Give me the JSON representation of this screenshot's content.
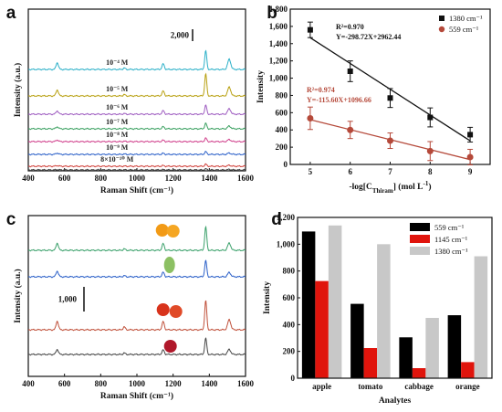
{
  "chart_data": [
    {
      "panel": "a",
      "type": "line",
      "xlabel": "Raman Shift (cm⁻¹)",
      "ylabel": "Intensity (a.u.)",
      "xlim": [
        400,
        1600
      ],
      "xticks": [
        400,
        600,
        800,
        1000,
        1200,
        1400,
        1600
      ],
      "scale_bar_label": "2,000",
      "peaks": [
        560,
        930,
        1145,
        1380,
        1510
      ],
      "series": [
        {
          "name": "10⁻⁴ M",
          "color": "#2bb0c8",
          "peak_height": [
            1.0,
            0.2,
            0.8,
            2.7,
            1.5
          ]
        },
        {
          "name": "10⁻⁵ M",
          "color": "#b8a010",
          "peak_height": [
            0.9,
            0.2,
            0.7,
            3.2,
            1.3
          ]
        },
        {
          "name": "10⁻⁶ M",
          "color": "#9e5cc0",
          "peak_height": [
            0.5,
            0.1,
            0.5,
            1.3,
            0.8
          ]
        },
        {
          "name": "10⁻⁷ M",
          "color": "#3aa060",
          "peak_height": [
            0.3,
            0.1,
            0.3,
            0.8,
            0.4
          ]
        },
        {
          "name": "10⁻⁸ M",
          "color": "#d0408c",
          "peak_height": [
            0.25,
            0.05,
            0.2,
            0.5,
            0.3
          ]
        },
        {
          "name": "10⁻⁹ M",
          "color": "#2a5fc8",
          "peak_height": [
            0.2,
            0.05,
            0.15,
            0.4,
            0.2
          ]
        },
        {
          "name": "8×10⁻¹⁰ M",
          "color": "#d0403a",
          "peak_height": [
            0.1,
            0.02,
            0.1,
            0.3,
            0.15
          ]
        },
        {
          "name": "",
          "color": "#444444",
          "peak_height": [
            0.05,
            0.02,
            0.05,
            0.15,
            0.08
          ]
        }
      ]
    },
    {
      "panel": "b",
      "type": "scatter",
      "xlabel": "-log[C",
      "xlabel_sub": "Thiram",
      "xlabel_tail": "] (mol L",
      "ylabel": "Intensity",
      "xlim": [
        4.5,
        9.5
      ],
      "xticks": [
        5,
        6,
        7,
        8,
        9
      ],
      "ylim": [
        0,
        1800
      ],
      "yticks": [
        0,
        200,
        400,
        600,
        800,
        1000,
        1200,
        1400,
        1600,
        1800
      ],
      "ytick_labels": [
        "0",
        "200",
        "400",
        "600",
        "800",
        "1,000",
        "1,200",
        "1,400",
        "1,600",
        "1,800"
      ],
      "series": [
        {
          "name": "1380 cm⁻¹",
          "color": "#111111",
          "marker": "square",
          "x": [
            5,
            6,
            7,
            8,
            9
          ],
          "y": [
            1560,
            1080,
            770,
            545,
            345
          ],
          "err": [
            90,
            120,
            110,
            110,
            85
          ],
          "fit": {
            "slope": -298.72,
            "intercept": 2962.44,
            "r2_text": "R²=0.970",
            "eq_text": "Y=-298.72X+2962.44"
          }
        },
        {
          "name": "559 cm⁻¹",
          "color": "#b5493a",
          "marker": "circle",
          "x": [
            5,
            6,
            7,
            8,
            9
          ],
          "y": [
            535,
            400,
            275,
            155,
            85
          ],
          "err": [
            130,
            100,
            90,
            110,
            90
          ],
          "fit": {
            "slope": -115.6,
            "intercept": 1096.66,
            "r2_text": "R²=0.974",
            "eq_text": "Y=-115.60X+1096.66"
          }
        }
      ]
    },
    {
      "panel": "c",
      "type": "line",
      "xlabel": "Raman Shift (cm⁻¹)",
      "ylabel": "Intensity (a.u.)",
      "xlim": [
        400,
        1600
      ],
      "xticks": [
        400,
        600,
        800,
        1000,
        1200,
        1400,
        1600
      ],
      "scale_bar_label": "1,000",
      "peaks": [
        560,
        930,
        1145,
        1380,
        1510
      ],
      "series": [
        {
          "name": "orange",
          "color": "#3aa06a",
          "peak_height": [
            1.0,
            0.2,
            0.9,
            3.2,
            1.0
          ]
        },
        {
          "name": "cabbage",
          "color": "#2a5fc8",
          "peak_height": [
            0.8,
            0.15,
            0.6,
            2.2,
            0.6
          ]
        },
        {
          "name": "tomato",
          "color": "#c0503a",
          "peak_height": [
            1.2,
            0.4,
            1.1,
            4.0,
            1.4
          ]
        },
        {
          "name": "apple",
          "color": "#444444",
          "peak_height": [
            0.7,
            0.2,
            0.6,
            2.2,
            0.7
          ]
        }
      ]
    },
    {
      "panel": "d",
      "type": "bar",
      "xlabel": "Analytes",
      "ylabel": "Intensity",
      "categories": [
        "apple",
        "tomato",
        "cabbage",
        "orange"
      ],
      "ylim": [
        0,
        1200
      ],
      "yticks": [
        0,
        200,
        400,
        600,
        800,
        1000,
        1200
      ],
      "ytick_labels": [
        "0",
        "200",
        "400",
        "600",
        "800",
        "1,000",
        "1,200"
      ],
      "series": [
        {
          "name": "559 cm⁻¹",
          "color": "#000000",
          "values": [
            1095,
            555,
            305,
            470
          ]
        },
        {
          "name": "1145 cm⁻¹",
          "color": "#e0140c",
          "values": [
            725,
            225,
            75,
            120
          ]
        },
        {
          "name": "1380 cm⁻¹",
          "color": "#c8c8c8",
          "values": [
            1140,
            1000,
            450,
            910
          ]
        }
      ]
    }
  ]
}
